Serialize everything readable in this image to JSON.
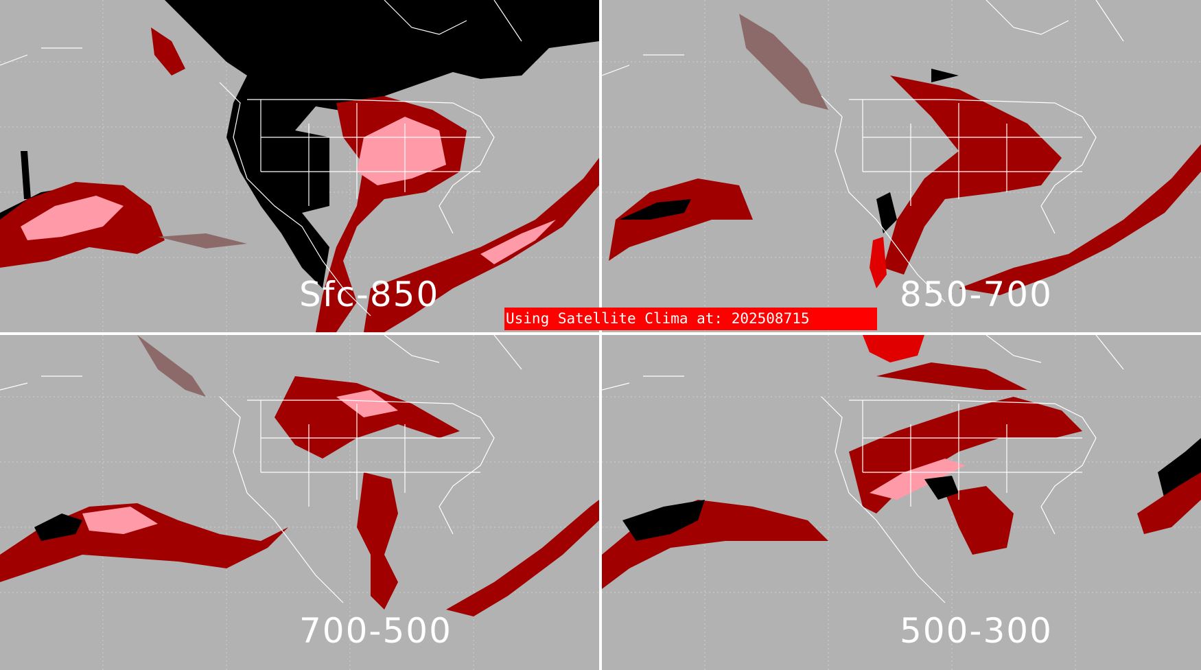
{
  "figure": {
    "banner_text": "Using Satellite Clima at: 202508715",
    "panels": [
      {
        "id": "sfc-850",
        "label": "Sfc-850"
      },
      {
        "id": "850-700",
        "label": "850-700"
      },
      {
        "id": "700-500",
        "label": "700-500"
      },
      {
        "id": "500-300",
        "label": "500-300"
      }
    ]
  },
  "colors": {
    "background": "#b2b2b2",
    "divider": "#ffffff",
    "outline": "#ffffff",
    "dark_red": "#a00000",
    "red": "#e00000",
    "pink": "#ff9aa8",
    "mauve": "#8c6a6a",
    "black": "#000000",
    "banner": "#ff0000"
  }
}
